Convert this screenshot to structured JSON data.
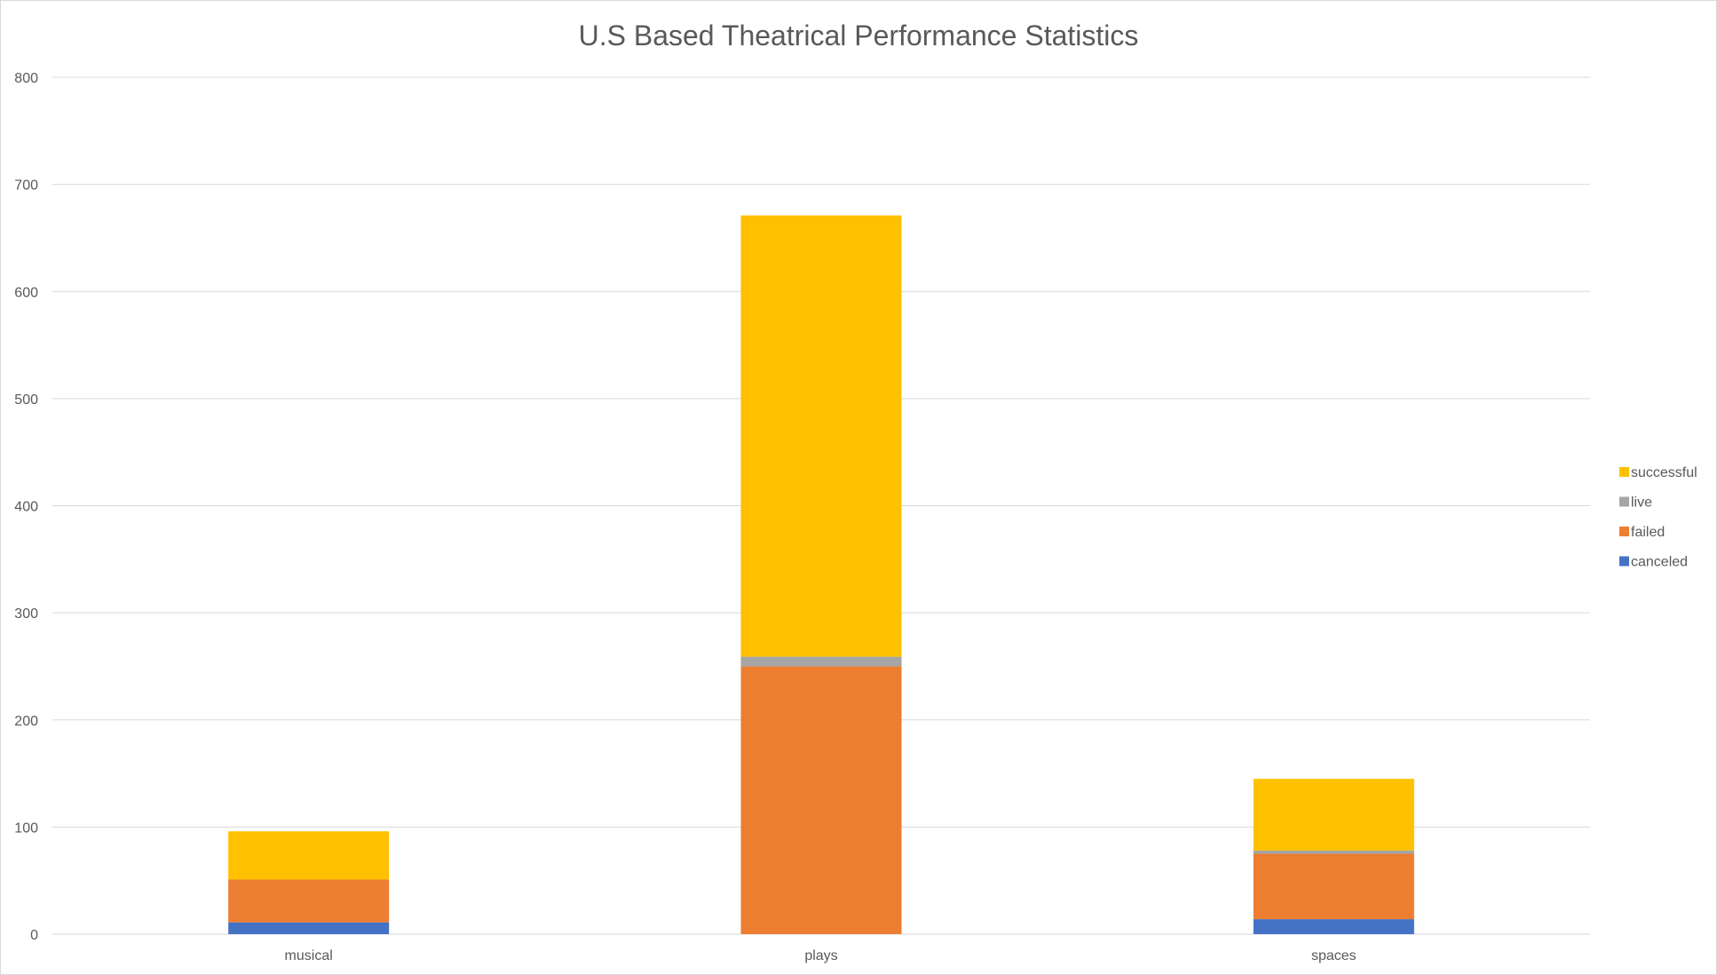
{
  "chart_data": {
    "type": "bar",
    "stacked": true,
    "title": "U.S Based Theatrical Performance Statistics",
    "categories": [
      "musical",
      "plays",
      "spaces"
    ],
    "series": [
      {
        "name": "canceled",
        "color": "#4472C4",
        "values": [
          11,
          0,
          14
        ]
      },
      {
        "name": "failed",
        "color": "#ED7D31",
        "values": [
          40,
          250,
          61
        ]
      },
      {
        "name": "live",
        "color": "#A5A5A5",
        "values": [
          0,
          9,
          3
        ]
      },
      {
        "name": "successful",
        "color": "#FFC000",
        "values": [
          45,
          412,
          67
        ]
      }
    ],
    "ylim": [
      0,
      800
    ],
    "yticks": [
      "0",
      "100",
      "200",
      "300",
      "400",
      "500",
      "600",
      "700",
      "800"
    ],
    "grid": true,
    "legend_position": "right"
  }
}
